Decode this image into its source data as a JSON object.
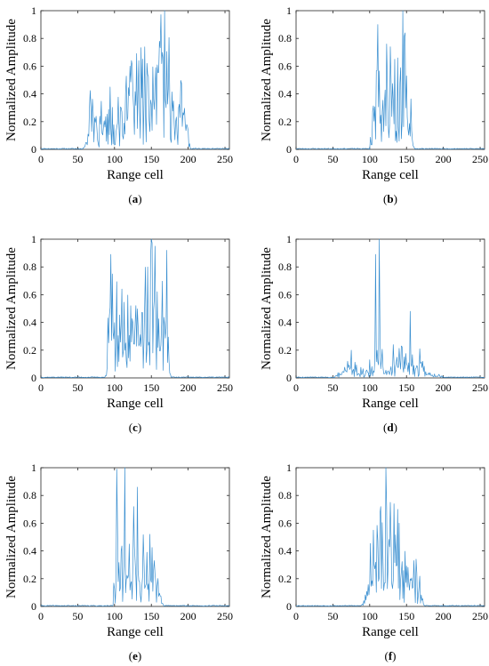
{
  "colors": {
    "line": "#3a8fd0",
    "axis": "#262626",
    "background": "#ffffff"
  },
  "chart_data": [
    {
      "type": "line",
      "panel_label": "(a)",
      "bold_letter": "a",
      "xlabel": "Range cell",
      "ylabel": "Normalized Amplitude",
      "xlim": [
        0,
        256
      ],
      "ylim": [
        0,
        1
      ],
      "xticks": [
        0,
        50,
        100,
        150,
        200,
        250
      ],
      "yticks": [
        0,
        0.2,
        0.4,
        0.6,
        0.8,
        1
      ],
      "signal_range": [
        58,
        203
      ],
      "profile": [
        [
          58,
          0.02
        ],
        [
          62,
          0.1
        ],
        [
          65,
          0.28
        ],
        [
          70,
          0.27
        ],
        [
          75,
          0.24
        ],
        [
          80,
          0.25
        ],
        [
          85,
          0.22
        ],
        [
          90,
          0.24
        ],
        [
          95,
          0.28
        ],
        [
          100,
          0.3
        ],
        [
          105,
          0.33
        ],
        [
          110,
          0.32
        ],
        [
          115,
          0.36
        ],
        [
          120,
          0.42
        ],
        [
          125,
          0.48
        ],
        [
          130,
          0.5
        ],
        [
          135,
          0.48
        ],
        [
          140,
          0.52
        ],
        [
          145,
          0.48
        ],
        [
          150,
          0.5
        ],
        [
          155,
          0.56
        ],
        [
          160,
          0.6
        ],
        [
          165,
          0.66
        ],
        [
          168,
          0.88
        ],
        [
          172,
          0.6
        ],
        [
          178,
          0.48
        ],
        [
          185,
          0.36
        ],
        [
          190,
          0.32
        ],
        [
          195,
          0.3
        ],
        [
          198,
          0.26
        ],
        [
          201,
          0.1
        ],
        [
          203,
          0.02
        ]
      ],
      "peaks": [
        [
          168,
          1.0
        ],
        [
          161,
          0.78
        ],
        [
          165,
          0.7
        ],
        [
          123,
          0.64
        ],
        [
          133,
          0.64
        ],
        [
          144,
          0.62
        ]
      ],
      "seed": 11
    },
    {
      "type": "line",
      "panel_label": "(b)",
      "bold_letter": "b",
      "xlabel": "Range cell",
      "ylabel": "Normalized Amplitude",
      "xlim": [
        0,
        256
      ],
      "ylim": [
        0,
        1
      ],
      "xticks": [
        0,
        50,
        100,
        150,
        200,
        250
      ],
      "yticks": [
        0,
        0.2,
        0.4,
        0.6,
        0.8,
        1
      ],
      "signal_range": [
        100,
        160
      ],
      "profile": [
        [
          100,
          0.02
        ],
        [
          103,
          0.3
        ],
        [
          108,
          0.42
        ],
        [
          112,
          0.48
        ],
        [
          118,
          0.45
        ],
        [
          124,
          0.42
        ],
        [
          130,
          0.44
        ],
        [
          135,
          0.46
        ],
        [
          140,
          0.5
        ],
        [
          145,
          0.58
        ],
        [
          150,
          0.5
        ],
        [
          155,
          0.35
        ],
        [
          158,
          0.12
        ],
        [
          160,
          0.02
        ]
      ],
      "peaks": [
        [
          145,
          1.0
        ],
        [
          111,
          0.9
        ],
        [
          123,
          0.76
        ],
        [
          148,
          0.84
        ],
        [
          134,
          0.65
        ],
        [
          138,
          0.66
        ]
      ],
      "seed": 23
    },
    {
      "type": "line",
      "panel_label": "(c)",
      "bold_letter": "c",
      "xlabel": "Range cell",
      "ylabel": "Normalized Amplitude",
      "xlim": [
        0,
        256
      ],
      "ylim": [
        0,
        1
      ],
      "xticks": [
        0,
        50,
        100,
        150,
        200,
        250
      ],
      "yticks": [
        0,
        0.2,
        0.4,
        0.6,
        0.8,
        1
      ],
      "signal_range": [
        88,
        176
      ],
      "profile": [
        [
          88,
          0.02
        ],
        [
          91,
          0.3
        ],
        [
          95,
          0.45
        ],
        [
          100,
          0.48
        ],
        [
          105,
          0.45
        ],
        [
          110,
          0.44
        ],
        [
          115,
          0.4
        ],
        [
          120,
          0.38
        ],
        [
          125,
          0.4
        ],
        [
          130,
          0.42
        ],
        [
          135,
          0.45
        ],
        [
          140,
          0.5
        ],
        [
          145,
          0.55
        ],
        [
          150,
          0.6
        ],
        [
          155,
          0.58
        ],
        [
          160,
          0.52
        ],
        [
          165,
          0.5
        ],
        [
          170,
          0.45
        ],
        [
          174,
          0.2
        ],
        [
          176,
          0.02
        ]
      ],
      "peaks": [
        [
          150,
          1.0
        ],
        [
          155,
          0.95
        ],
        [
          95,
          0.89
        ],
        [
          171,
          0.92
        ],
        [
          145,
          0.8
        ],
        [
          110,
          0.64
        ]
      ],
      "seed": 37
    },
    {
      "type": "line",
      "panel_label": "(d)",
      "bold_letter": "d",
      "xlabel": "Range cell",
      "ylabel": "Normalized Amplitude",
      "xlim": [
        0,
        256
      ],
      "ylim": [
        0,
        1
      ],
      "xticks": [
        0,
        50,
        100,
        150,
        200,
        250
      ],
      "yticks": [
        0,
        0.2,
        0.4,
        0.6,
        0.8,
        1
      ],
      "signal_range": [
        52,
        200
      ],
      "profile": [
        [
          52,
          0.01
        ],
        [
          60,
          0.04
        ],
        [
          68,
          0.1
        ],
        [
          74,
          0.15
        ],
        [
          80,
          0.08
        ],
        [
          88,
          0.05
        ],
        [
          95,
          0.06
        ],
        [
          100,
          0.08
        ],
        [
          105,
          0.1
        ],
        [
          110,
          0.15
        ],
        [
          115,
          0.2
        ],
        [
          120,
          0.08
        ],
        [
          130,
          0.06
        ],
        [
          135,
          0.1
        ],
        [
          140,
          0.14
        ],
        [
          150,
          0.12
        ],
        [
          155,
          0.15
        ],
        [
          160,
          0.1
        ],
        [
          165,
          0.12
        ],
        [
          170,
          0.1
        ],
        [
          178,
          0.05
        ],
        [
          190,
          0.02
        ],
        [
          200,
          0.01
        ]
      ],
      "peaks": [
        [
          113,
          1.0
        ],
        [
          108,
          0.89
        ],
        [
          155,
          0.48
        ],
        [
          75,
          0.2
        ],
        [
          132,
          0.24
        ],
        [
          143,
          0.23
        ],
        [
          168,
          0.21
        ],
        [
          70,
          0.12
        ]
      ],
      "seed": 5
    },
    {
      "type": "line",
      "panel_label": "(e)",
      "bold_letter": "e",
      "xlabel": "Range cell",
      "ylabel": "Normalized Amplitude",
      "xlim": [
        0,
        256
      ],
      "ylim": [
        0,
        1
      ],
      "xticks": [
        0,
        50,
        100,
        150,
        200,
        250
      ],
      "yticks": [
        0,
        0.2,
        0.4,
        0.6,
        0.8,
        1
      ],
      "signal_range": [
        98,
        166
      ],
      "profile": [
        [
          98,
          0.02
        ],
        [
          101,
          0.3
        ],
        [
          105,
          0.42
        ],
        [
          110,
          0.38
        ],
        [
          115,
          0.4
        ],
        [
          120,
          0.3
        ],
        [
          125,
          0.34
        ],
        [
          130,
          0.4
        ],
        [
          135,
          0.3
        ],
        [
          140,
          0.32
        ],
        [
          145,
          0.3
        ],
        [
          150,
          0.28
        ],
        [
          155,
          0.22
        ],
        [
          160,
          0.2
        ],
        [
          164,
          0.1
        ],
        [
          166,
          0.02
        ]
      ],
      "peaks": [
        [
          114,
          1.0
        ],
        [
          103,
          0.99
        ],
        [
          131,
          0.86
        ],
        [
          126,
          0.72
        ],
        [
          148,
          0.52
        ],
        [
          120,
          0.45
        ]
      ],
      "seed": 41
    },
    {
      "type": "line",
      "panel_label": "(f)",
      "bold_letter": "f",
      "xlabel": "Range cell",
      "ylabel": "Normalized Amplitude",
      "xlim": [
        0,
        256
      ],
      "ylim": [
        0,
        1
      ],
      "xticks": [
        0,
        50,
        100,
        150,
        200,
        250
      ],
      "yticks": [
        0,
        0.2,
        0.4,
        0.6,
        0.8,
        1
      ],
      "signal_range": [
        88,
        174
      ],
      "profile": [
        [
          88,
          0.01
        ],
        [
          92,
          0.08
        ],
        [
          96,
          0.2
        ],
        [
          100,
          0.28
        ],
        [
          105,
          0.35
        ],
        [
          110,
          0.4
        ],
        [
          115,
          0.45
        ],
        [
          120,
          0.48
        ],
        [
          125,
          0.45
        ],
        [
          130,
          0.42
        ],
        [
          135,
          0.4
        ],
        [
          140,
          0.38
        ],
        [
          145,
          0.36
        ],
        [
          150,
          0.32
        ],
        [
          155,
          0.3
        ],
        [
          160,
          0.26
        ],
        [
          165,
          0.22
        ],
        [
          170,
          0.15
        ],
        [
          174,
          0.02
        ]
      ],
      "peaks": [
        [
          122,
          1.0
        ],
        [
          115,
          0.72
        ],
        [
          128,
          0.75
        ],
        [
          133,
          0.74
        ],
        [
          138,
          0.7
        ],
        [
          105,
          0.55
        ],
        [
          140,
          0.6
        ]
      ],
      "seed": 53
    }
  ]
}
